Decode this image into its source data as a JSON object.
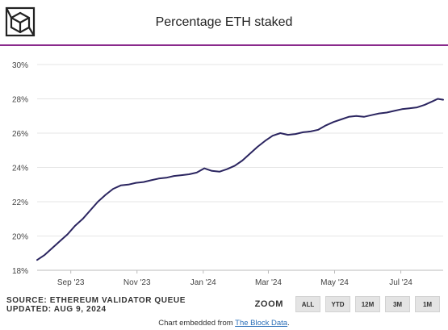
{
  "header": {
    "title": "Percentage ETH staked",
    "logo_icon": "the-block-cube-logo-icon"
  },
  "footer": {
    "source_line": "SOURCE: ETHEREUM VALIDATOR QUEUE",
    "updated_line": "UPDATED: AUG 9, 2024",
    "zoom_label": "ZOOM",
    "zoom_buttons": [
      "ALL",
      "YTD",
      "12M",
      "3M",
      "1M"
    ],
    "embed_prefix": "Chart embedded from ",
    "embed_link": "The Block Data",
    "embed_suffix": "."
  },
  "colors": {
    "line": "#2b2560",
    "accent_rule": "#8a2a8c",
    "grid": "#e6e6e6"
  },
  "chart_data": {
    "type": "line",
    "title": "Percentage ETH staked",
    "xlabel": "",
    "ylabel": "",
    "x_tick_labels": [
      "Sep '23",
      "Nov '23",
      "Jan '24",
      "Mar '24",
      "May '24",
      "Jul '24"
    ],
    "x_tick_dates": [
      "2023-09-01",
      "2023-11-01",
      "2024-01-01",
      "2024-03-01",
      "2024-05-01",
      "2024-07-01"
    ],
    "xlim": [
      "2023-08-01",
      "2024-08-09"
    ],
    "y_tick_labels": [
      "18%",
      "20%",
      "22%",
      "24%",
      "26%",
      "28%",
      "30%"
    ],
    "y_ticks": [
      18,
      20,
      22,
      24,
      26,
      28,
      30
    ],
    "ylim": [
      18,
      30
    ],
    "y_grid": true,
    "legend": "none",
    "series": [
      {
        "values": [
          [
            "2023-08-01",
            18.6
          ],
          [
            "2023-08-08",
            18.9
          ],
          [
            "2023-08-15",
            19.3
          ],
          [
            "2023-08-22",
            19.7
          ],
          [
            "2023-08-29",
            20.1
          ],
          [
            "2023-09-05",
            20.6
          ],
          [
            "2023-09-12",
            21.0
          ],
          [
            "2023-09-19",
            21.5
          ],
          [
            "2023-09-26",
            22.0
          ],
          [
            "2023-10-03",
            22.4
          ],
          [
            "2023-10-10",
            22.75
          ],
          [
            "2023-10-17",
            22.95
          ],
          [
            "2023-10-24",
            23.0
          ],
          [
            "2023-10-31",
            23.1
          ],
          [
            "2023-11-07",
            23.15
          ],
          [
            "2023-11-14",
            23.25
          ],
          [
            "2023-11-21",
            23.35
          ],
          [
            "2023-11-28",
            23.4
          ],
          [
            "2023-12-05",
            23.5
          ],
          [
            "2023-12-12",
            23.55
          ],
          [
            "2023-12-19",
            23.6
          ],
          [
            "2023-12-26",
            23.7
          ],
          [
            "2024-01-02",
            23.95
          ],
          [
            "2024-01-09",
            23.8
          ],
          [
            "2024-01-16",
            23.75
          ],
          [
            "2024-01-23",
            23.9
          ],
          [
            "2024-01-30",
            24.1
          ],
          [
            "2024-02-06",
            24.4
          ],
          [
            "2024-02-13",
            24.8
          ],
          [
            "2024-02-20",
            25.2
          ],
          [
            "2024-02-27",
            25.55
          ],
          [
            "2024-03-05",
            25.85
          ],
          [
            "2024-03-12",
            26.0
          ],
          [
            "2024-03-19",
            25.9
          ],
          [
            "2024-03-26",
            25.95
          ],
          [
            "2024-04-02",
            26.05
          ],
          [
            "2024-04-09",
            26.1
          ],
          [
            "2024-04-16",
            26.2
          ],
          [
            "2024-04-23",
            26.45
          ],
          [
            "2024-04-30",
            26.65
          ],
          [
            "2024-05-07",
            26.8
          ],
          [
            "2024-05-14",
            26.95
          ],
          [
            "2024-05-21",
            27.0
          ],
          [
            "2024-05-28",
            26.95
          ],
          [
            "2024-06-04",
            27.05
          ],
          [
            "2024-06-11",
            27.15
          ],
          [
            "2024-06-18",
            27.2
          ],
          [
            "2024-06-25",
            27.3
          ],
          [
            "2024-07-02",
            27.4
          ],
          [
            "2024-07-09",
            27.45
          ],
          [
            "2024-07-16",
            27.5
          ],
          [
            "2024-07-23",
            27.65
          ],
          [
            "2024-07-30",
            27.85
          ],
          [
            "2024-08-04",
            28.0
          ],
          [
            "2024-08-09",
            27.95
          ]
        ]
      }
    ]
  }
}
